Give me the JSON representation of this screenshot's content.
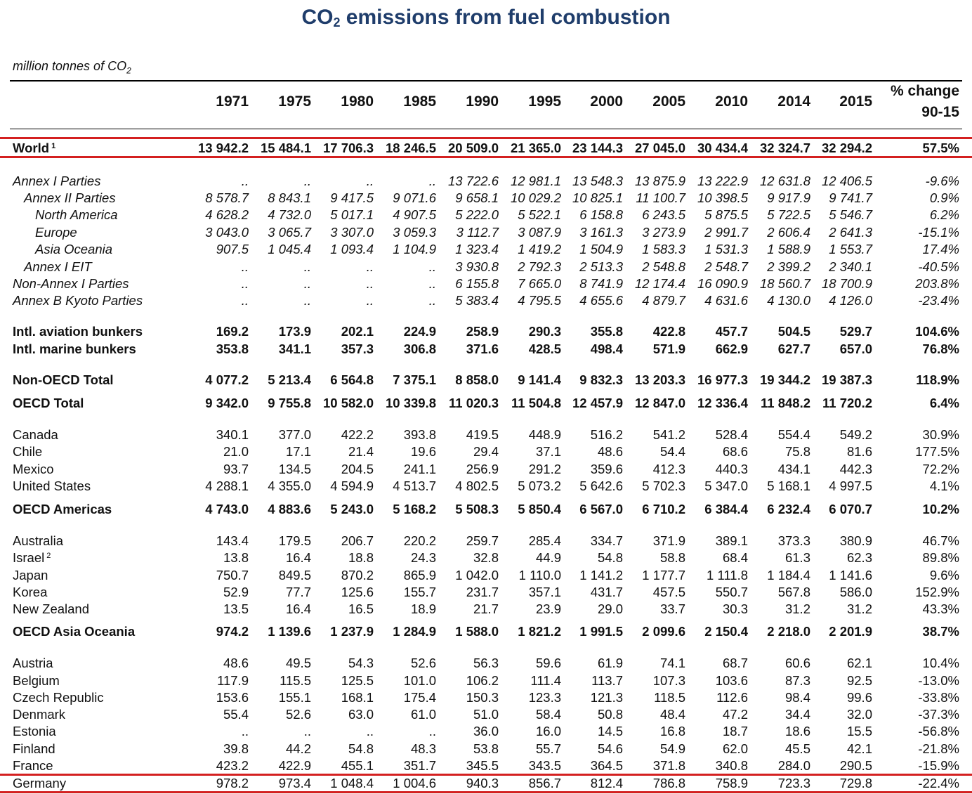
{
  "title": {
    "main": "CO",
    "sub": "2",
    "rest": " emissions from fuel combustion"
  },
  "units": {
    "main": "million tonnes of CO",
    "sub": "2"
  },
  "years": [
    "1971",
    "1975",
    "1980",
    "1985",
    "1990",
    "1995",
    "2000",
    "2005",
    "2010",
    "2014",
    "2015"
  ],
  "change_header": {
    "line1": "% change",
    "line2": "90-15"
  },
  "rows": [
    {
      "label": "World",
      "note": "1",
      "style": "b",
      "indent": 0,
      "values": [
        "13 942.2",
        "15 484.1",
        "17 706.3",
        "18 246.5",
        "20 509.0",
        "21 365.0",
        "23 144.3",
        "27 045.0",
        "30 434.4",
        "32 324.7",
        "32 294.2"
      ],
      "change": "57.5%"
    },
    {
      "label": "Annex I Parties",
      "style": "i",
      "indent": 0,
      "values": [
        "..",
        "..",
        "..",
        "..",
        "13 722.6",
        "12 981.1",
        "13 548.3",
        "13 875.9",
        "13 222.9",
        "12 631.8",
        "12 406.5"
      ],
      "change": "-9.6%"
    },
    {
      "label": "Annex II Parties",
      "style": "i",
      "indent": 1,
      "values": [
        "8 578.7",
        "8 843.1",
        "9 417.5",
        "9 071.6",
        "9 658.1",
        "10 029.2",
        "10 825.1",
        "11 100.7",
        "10 398.5",
        "9 917.9",
        "9 741.7"
      ],
      "change": "0.9%"
    },
    {
      "label": "North America",
      "style": "i",
      "indent": 2,
      "values": [
        "4 628.2",
        "4 732.0",
        "5 017.1",
        "4 907.5",
        "5 222.0",
        "5 522.1",
        "6 158.8",
        "6 243.5",
        "5 875.5",
        "5 722.5",
        "5 546.7"
      ],
      "change": "6.2%"
    },
    {
      "label": "Europe",
      "style": "i",
      "indent": 2,
      "values": [
        "3 043.0",
        "3 065.7",
        "3 307.0",
        "3 059.3",
        "3 112.7",
        "3 087.9",
        "3 161.3",
        "3 273.9",
        "2 991.7",
        "2 606.4",
        "2 641.3"
      ],
      "change": "-15.1%"
    },
    {
      "label": "Asia Oceania",
      "style": "i",
      "indent": 2,
      "values": [
        "907.5",
        "1 045.4",
        "1 093.4",
        "1 104.9",
        "1 323.4",
        "1 419.2",
        "1 504.9",
        "1 583.3",
        "1 531.3",
        "1 588.9",
        "1 553.7"
      ],
      "change": "17.4%"
    },
    {
      "label": "Annex I EIT",
      "style": "i",
      "indent": 1,
      "values": [
        "..",
        "..",
        "..",
        "..",
        "3 930.8",
        "2 792.3",
        "2 513.3",
        "2 548.8",
        "2 548.7",
        "2 399.2",
        "2 340.1"
      ],
      "change": "-40.5%"
    },
    {
      "label": "Non-Annex I Parties",
      "style": "i",
      "indent": 0,
      "values": [
        "..",
        "..",
        "..",
        "..",
        "6 155.8",
        "7 665.0",
        "8 741.9",
        "12 174.4",
        "16 090.9",
        "18 560.7",
        "18 700.9"
      ],
      "change": "203.8%"
    },
    {
      "label": "Annex B Kyoto Parties",
      "style": "i",
      "indent": 0,
      "values": [
        "..",
        "..",
        "..",
        "..",
        "5 383.4",
        "4 795.5",
        "4 655.6",
        "4 879.7",
        "4 631.6",
        "4 130.0",
        "4 126.0"
      ],
      "change": "-23.4%"
    },
    {
      "label": "Intl. aviation bunkers",
      "style": "b",
      "indent": 0,
      "values": [
        "169.2",
        "173.9",
        "202.1",
        "224.9",
        "258.9",
        "290.3",
        "355.8",
        "422.8",
        "457.7",
        "504.5",
        "529.7"
      ],
      "change": "104.6%"
    },
    {
      "label": "Intl. marine bunkers",
      "style": "b",
      "indent": 0,
      "values": [
        "353.8",
        "341.1",
        "357.3",
        "306.8",
        "371.6",
        "428.5",
        "498.4",
        "571.9",
        "662.9",
        "627.7",
        "657.0"
      ],
      "change": "76.8%"
    },
    {
      "label": "Non-OECD Total",
      "style": "b",
      "indent": 0,
      "values": [
        "4 077.2",
        "5 213.4",
        "6 564.8",
        "7 375.1",
        "8 858.0",
        "9 141.4",
        "9 832.3",
        "13 203.3",
        "16 977.3",
        "19 344.2",
        "19 387.3"
      ],
      "change": "118.9%"
    },
    {
      "label": "OECD Total",
      "style": "b",
      "indent": 0,
      "values": [
        "9 342.0",
        "9 755.8",
        "10 582.0",
        "10 339.8",
        "11 020.3",
        "11 504.8",
        "12 457.9",
        "12 847.0",
        "12 336.4",
        "11 848.2",
        "11 720.2"
      ],
      "change": "6.4%"
    },
    {
      "label": "Canada",
      "style": "n",
      "indent": 0,
      "values": [
        "340.1",
        "377.0",
        "422.2",
        "393.8",
        "419.5",
        "448.9",
        "516.2",
        "541.2",
        "528.4",
        "554.4",
        "549.2"
      ],
      "change": "30.9%"
    },
    {
      "label": "Chile",
      "style": "n",
      "indent": 0,
      "values": [
        "21.0",
        "17.1",
        "21.4",
        "19.6",
        "29.4",
        "37.1",
        "48.6",
        "54.4",
        "68.6",
        "75.8",
        "81.6"
      ],
      "change": "177.5%"
    },
    {
      "label": "Mexico",
      "style": "n",
      "indent": 0,
      "values": [
        "93.7",
        "134.5",
        "204.5",
        "241.1",
        "256.9",
        "291.2",
        "359.6",
        "412.3",
        "440.3",
        "434.1",
        "442.3"
      ],
      "change": "72.2%"
    },
    {
      "label": "United States",
      "style": "n",
      "indent": 0,
      "values": [
        "4 288.1",
        "4 355.0",
        "4 594.9",
        "4 513.7",
        "4 802.5",
        "5 073.2",
        "5 642.6",
        "5 702.3",
        "5 347.0",
        "5 168.1",
        "4 997.5"
      ],
      "change": "4.1%"
    },
    {
      "label": "OECD Americas",
      "style": "b",
      "indent": 0,
      "values": [
        "4 743.0",
        "4 883.6",
        "5 243.0",
        "5 168.2",
        "5 508.3",
        "5 850.4",
        "6 567.0",
        "6 710.2",
        "6 384.4",
        "6 232.4",
        "6 070.7"
      ],
      "change": "10.2%"
    },
    {
      "label": "Australia",
      "style": "n",
      "indent": 0,
      "values": [
        "143.4",
        "179.5",
        "206.7",
        "220.2",
        "259.7",
        "285.4",
        "334.7",
        "371.9",
        "389.1",
        "373.3",
        "380.9"
      ],
      "change": "46.7%"
    },
    {
      "label": "Israel",
      "note": "2",
      "style": "n",
      "indent": 0,
      "values": [
        "13.8",
        "16.4",
        "18.8",
        "24.3",
        "32.8",
        "44.9",
        "54.8",
        "58.8",
        "68.4",
        "61.3",
        "62.3"
      ],
      "change": "89.8%"
    },
    {
      "label": "Japan",
      "style": "n",
      "indent": 0,
      "values": [
        "750.7",
        "849.5",
        "870.2",
        "865.9",
        "1 042.0",
        "1 110.0",
        "1 141.2",
        "1 177.7",
        "1 111.8",
        "1 184.4",
        "1 141.6"
      ],
      "change": "9.6%"
    },
    {
      "label": "Korea",
      "style": "n",
      "indent": 0,
      "values": [
        "52.9",
        "77.7",
        "125.6",
        "155.7",
        "231.7",
        "357.1",
        "431.7",
        "457.5",
        "550.7",
        "567.8",
        "586.0"
      ],
      "change": "152.9%"
    },
    {
      "label": "New Zealand",
      "style": "n",
      "indent": 0,
      "values": [
        "13.5",
        "16.4",
        "16.5",
        "18.9",
        "21.7",
        "23.9",
        "29.0",
        "33.7",
        "30.3",
        "31.2",
        "31.2"
      ],
      "change": "43.3%"
    },
    {
      "label": "OECD Asia Oceania",
      "style": "b",
      "indent": 0,
      "values": [
        "974.2",
        "1 139.6",
        "1 237.9",
        "1 284.9",
        "1 588.0",
        "1 821.2",
        "1 991.5",
        "2 099.6",
        "2 150.4",
        "2 218.0",
        "2 201.9"
      ],
      "change": "38.7%"
    },
    {
      "label": "Austria",
      "style": "n",
      "indent": 0,
      "values": [
        "48.6",
        "49.5",
        "54.3",
        "52.6",
        "56.3",
        "59.6",
        "61.9",
        "74.1",
        "68.7",
        "60.6",
        "62.1"
      ],
      "change": "10.4%"
    },
    {
      "label": "Belgium",
      "style": "n",
      "indent": 0,
      "values": [
        "117.9",
        "115.5",
        "125.5",
        "101.0",
        "106.2",
        "111.4",
        "113.7",
        "107.3",
        "103.6",
        "87.3",
        "92.5"
      ],
      "change": "-13.0%"
    },
    {
      "label": "Czech Republic",
      "style": "n",
      "indent": 0,
      "values": [
        "153.6",
        "155.1",
        "168.1",
        "175.4",
        "150.3",
        "123.3",
        "121.3",
        "118.5",
        "112.6",
        "98.4",
        "99.6"
      ],
      "change": "-33.8%"
    },
    {
      "label": "Denmark",
      "style": "n",
      "indent": 0,
      "values": [
        "55.4",
        "52.6",
        "63.0",
        "61.0",
        "51.0",
        "58.4",
        "50.8",
        "48.4",
        "47.2",
        "34.4",
        "32.0"
      ],
      "change": "-37.3%"
    },
    {
      "label": "Estonia",
      "style": "n",
      "indent": 0,
      "values": [
        "..",
        "..",
        "..",
        "..",
        "36.0",
        "16.0",
        "14.5",
        "16.8",
        "18.7",
        "18.6",
        "15.5"
      ],
      "change": "-56.8%"
    },
    {
      "label": "Finland",
      "style": "n",
      "indent": 0,
      "values": [
        "39.8",
        "44.2",
        "54.8",
        "48.3",
        "53.8",
        "55.7",
        "54.6",
        "54.9",
        "62.0",
        "45.5",
        "42.1"
      ],
      "change": "-21.8%"
    },
    {
      "label": "France",
      "style": "n",
      "indent": 0,
      "values": [
        "423.2",
        "422.9",
        "455.1",
        "351.7",
        "345.5",
        "343.5",
        "364.5",
        "371.8",
        "340.8",
        "284.0",
        "290.5"
      ],
      "change": "-15.9%"
    },
    {
      "label": "Germany",
      "style": "n",
      "indent": 0,
      "values": [
        "978.2",
        "973.4",
        "1 048.4",
        "1 004.6",
        "940.3",
        "856.7",
        "812.4",
        "786.8",
        "758.9",
        "723.3",
        "729.8"
      ],
      "change": "-22.4%"
    }
  ]
}
